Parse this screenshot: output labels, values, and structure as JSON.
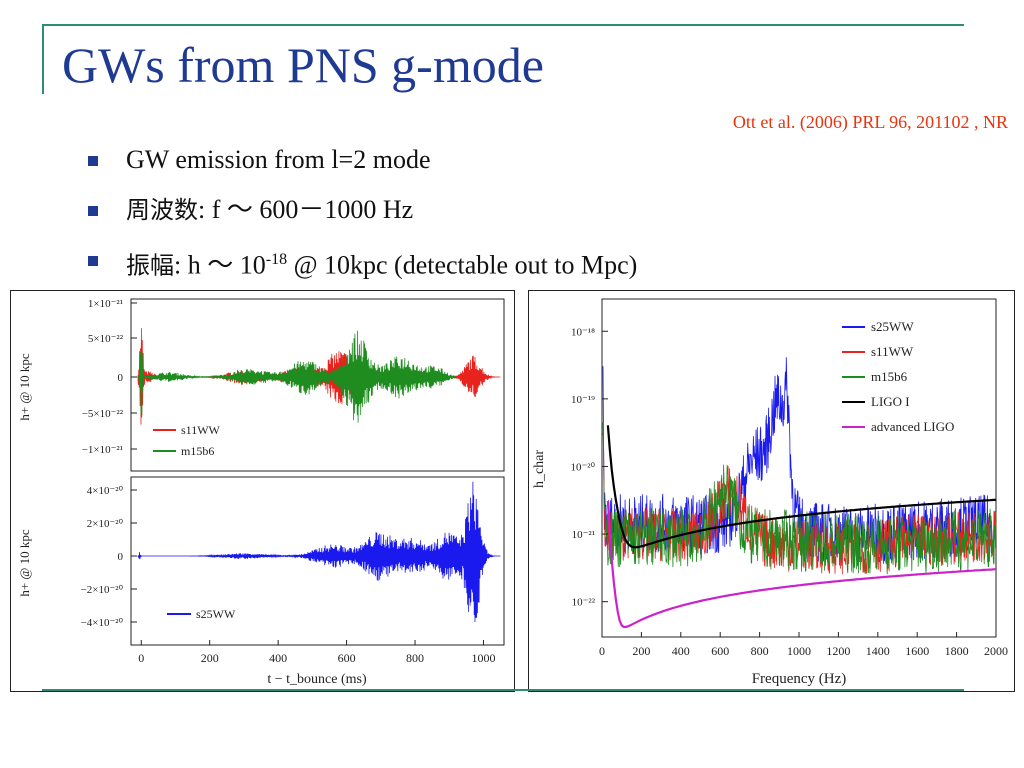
{
  "slide": {
    "title": "GWs from PNS g-mode",
    "citation": "Ott et al. (2006) PRL 96, 201102 , NR",
    "bullets": [
      {
        "text": "GW emission from l=2 mode"
      },
      {
        "label": "周波数",
        "text": ": f ～ 600－1000 Hz"
      },
      {
        "label": "振幅",
        "text_pre": ": h ～ 10",
        "sup": "-18",
        "text_post": " @ 10kpc (detectable out to Mpc)"
      }
    ],
    "colors": {
      "title": "#1f3a93",
      "citation": "#e8340f",
      "accent": "#2e8b7a",
      "bullet": "#1f3a93"
    }
  },
  "chart_data": [
    {
      "type": "line",
      "title": "",
      "ylabel": "h+ @ 10 kpc",
      "xlim": [
        -30,
        1060
      ],
      "ylim": [
        -1.2e-21,
        1.2e-21
      ],
      "yticks": [
        "1×10⁻²¹",
        "5×10⁻²²",
        "0",
        "−5×10⁻²²",
        "−1×10⁻²¹"
      ],
      "legend": "bottom-left",
      "series": [
        {
          "name": "s11WW",
          "color": "#e8231e"
        },
        {
          "name": "m15b6",
          "color": "#1e8c1e"
        }
      ]
    },
    {
      "type": "line",
      "xlabel": "t − t_bounce (ms)",
      "ylabel": "h+ @ 10 kpc",
      "xlim": [
        -30,
        1060
      ],
      "ylim": [
        -5e-20,
        5e-20
      ],
      "xticks": [
        "0",
        "200",
        "400",
        "600",
        "800",
        "1000"
      ],
      "yticks": [
        "4×10⁻²⁰",
        "2×10⁻²⁰",
        "0",
        "−2×10⁻²⁰",
        "−4×10⁻²⁰"
      ],
      "legend": "bottom-left",
      "series": [
        {
          "name": "s25WW",
          "color": "#1a1aee"
        }
      ]
    },
    {
      "type": "line",
      "xlabel": "Frequency (Hz)",
      "ylabel": "h_char",
      "yscale": "log",
      "xlim": [
        0,
        2000
      ],
      "ylim": [
        3e-23,
        3e-18
      ],
      "xticks": [
        "0",
        "200",
        "400",
        "600",
        "800",
        "1000",
        "1200",
        "1400",
        "1600",
        "1800",
        "2000"
      ],
      "yticks": [
        "10⁻¹⁸",
        "10⁻¹⁹",
        "10⁻²⁰",
        "10⁻²¹",
        "10⁻²²"
      ],
      "legend": "top-right",
      "series": [
        {
          "name": "s25WW",
          "color": "#1a1aee"
        },
        {
          "name": "s11WW",
          "color": "#e8231e"
        },
        {
          "name": "m15b6",
          "color": "#1e8c1e"
        },
        {
          "name": "LIGO I",
          "color": "#000000"
        },
        {
          "name": "advanced LIGO",
          "color": "#cc22cc"
        }
      ]
    }
  ]
}
